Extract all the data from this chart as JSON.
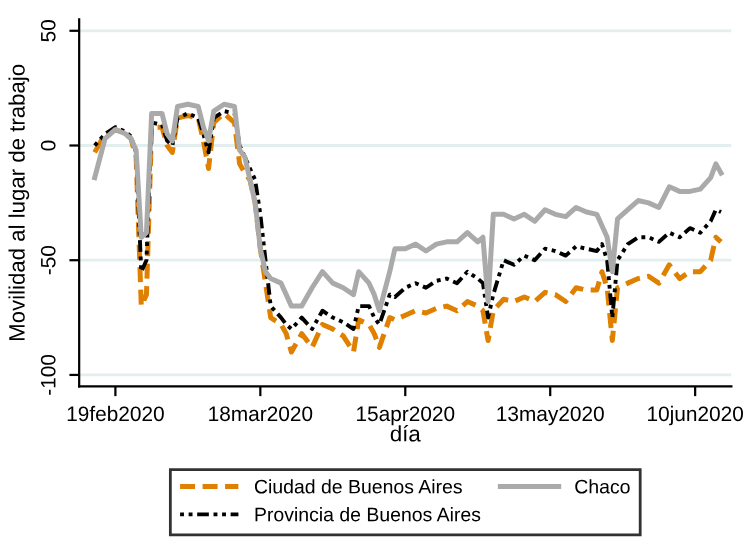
{
  "chart_data": {
    "type": "line",
    "xlabel": "día",
    "ylabel": "Movilidad al lugar de trabajo",
    "x": [
      "2020-02-15",
      "2020-02-17",
      "2020-02-19",
      "2020-02-21",
      "2020-02-22",
      "2020-02-23",
      "2020-02-24",
      "2020-02-25",
      "2020-02-26",
      "2020-02-28",
      "2020-02-29",
      "2020-03-01",
      "2020-03-02",
      "2020-03-04",
      "2020-03-06",
      "2020-03-07",
      "2020-03-08",
      "2020-03-09",
      "2020-03-11",
      "2020-03-13",
      "2020-03-14",
      "2020-03-15",
      "2020-03-16",
      "2020-03-17",
      "2020-03-18",
      "2020-03-19",
      "2020-03-20",
      "2020-03-22",
      "2020-03-23",
      "2020-03-24",
      "2020-03-26",
      "2020-03-28",
      "2020-03-30",
      "2020-04-01",
      "2020-04-03",
      "2020-04-05",
      "2020-04-06",
      "2020-04-08",
      "2020-04-09",
      "2020-04-10",
      "2020-04-12",
      "2020-04-13",
      "2020-04-15",
      "2020-04-17",
      "2020-04-19",
      "2020-04-21",
      "2020-04-23",
      "2020-04-25",
      "2020-04-27",
      "2020-04-29",
      "2020-04-30",
      "2020-05-01",
      "2020-05-02",
      "2020-05-04",
      "2020-05-06",
      "2020-05-08",
      "2020-05-10",
      "2020-05-12",
      "2020-05-14",
      "2020-05-16",
      "2020-05-18",
      "2020-05-20",
      "2020-05-22",
      "2020-05-23",
      "2020-05-24",
      "2020-05-25",
      "2020-05-26",
      "2020-05-28",
      "2020-05-30",
      "2020-06-01",
      "2020-06-03",
      "2020-06-05",
      "2020-06-07",
      "2020-06-09",
      "2020-06-11",
      "2020-06-13",
      "2020-06-14",
      "2020-06-15"
    ],
    "series": [
      {
        "name": "Ciudad de Buenos Aires",
        "color": "#e08000",
        "line_style": "dashed",
        "values": [
          -3,
          5,
          7,
          5,
          3,
          -5,
          -70,
          -65,
          8,
          8,
          0,
          -3,
          12,
          13,
          12,
          2,
          -10,
          10,
          14,
          10,
          -8,
          -12,
          -15,
          -25,
          -45,
          -60,
          -75,
          -78,
          -82,
          -90,
          -82,
          -88,
          -78,
          -80,
          -83,
          -90,
          -76,
          -78,
          -82,
          -88,
          -75,
          -76,
          -74,
          -72,
          -73,
          -71,
          -70,
          -72,
          -68,
          -70,
          -72,
          -85,
          -72,
          -67,
          -68,
          -66,
          -68,
          -64,
          -65,
          -68,
          -62,
          -63,
          -63,
          -55,
          -62,
          -85,
          -62,
          -60,
          -58,
          -57,
          -60,
          -52,
          -58,
          -55,
          -55,
          -50,
          -40,
          -42
        ]
      },
      {
        "name": "Provincia de Buenos Aires",
        "color": "#000000",
        "line_style": "dotted",
        "values": [
          0,
          5,
          8,
          6,
          4,
          -3,
          -55,
          -50,
          10,
          9,
          2,
          0,
          12,
          14,
          12,
          5,
          -3,
          12,
          15,
          14,
          0,
          -5,
          -10,
          -15,
          -30,
          -50,
          -70,
          -75,
          -78,
          -80,
          -75,
          -80,
          -72,
          -75,
          -77,
          -80,
          -70,
          -70,
          -75,
          -78,
          -65,
          -66,
          -62,
          -60,
          -62,
          -59,
          -58,
          -60,
          -55,
          -58,
          -60,
          -75,
          -65,
          -50,
          -52,
          -48,
          -50,
          -45,
          -46,
          -48,
          -44,
          -45,
          -46,
          -43,
          -50,
          -75,
          -50,
          -43,
          -40,
          -40,
          -42,
          -38,
          -40,
          -36,
          -38,
          -33,
          -28,
          -29
        ]
      },
      {
        "name": "Chaco",
        "color": "#aaaaaa",
        "line_style": "solid",
        "values": [
          -14,
          3,
          7,
          5,
          3,
          -2,
          -40,
          -38,
          14,
          14,
          5,
          2,
          17,
          18,
          17,
          8,
          2,
          15,
          18,
          17,
          -2,
          -5,
          -15,
          -25,
          -45,
          -55,
          -58,
          -60,
          -65,
          -70,
          -70,
          -62,
          -55,
          -60,
          -62,
          -65,
          -55,
          -60,
          -65,
          -72,
          -55,
          -45,
          -45,
          -43,
          -46,
          -43,
          -42,
          -42,
          -38,
          -42,
          -40,
          -68,
          -30,
          -30,
          -32,
          -30,
          -33,
          -28,
          -30,
          -31,
          -27,
          -29,
          -30,
          -35,
          -40,
          -55,
          -32,
          -28,
          -24,
          -25,
          -27,
          -18,
          -20,
          -20,
          -19,
          -14,
          -8,
          -12
        ]
      }
    ],
    "xlim": [
      "2020-02-12",
      "2020-06-17"
    ],
    "xticks": [
      {
        "value": "2020-02-19",
        "label": "19feb2020"
      },
      {
        "value": "2020-03-18",
        "label": "18mar2020"
      },
      {
        "value": "2020-04-15",
        "label": "15apr2020"
      },
      {
        "value": "2020-05-13",
        "label": "13may2020"
      },
      {
        "value": "2020-06-10",
        "label": "10jun2020"
      }
    ],
    "ylim": [
      -105,
      55
    ],
    "yticks": [
      -100,
      -50,
      0,
      50
    ],
    "grid": "y",
    "legend": "bottom"
  }
}
